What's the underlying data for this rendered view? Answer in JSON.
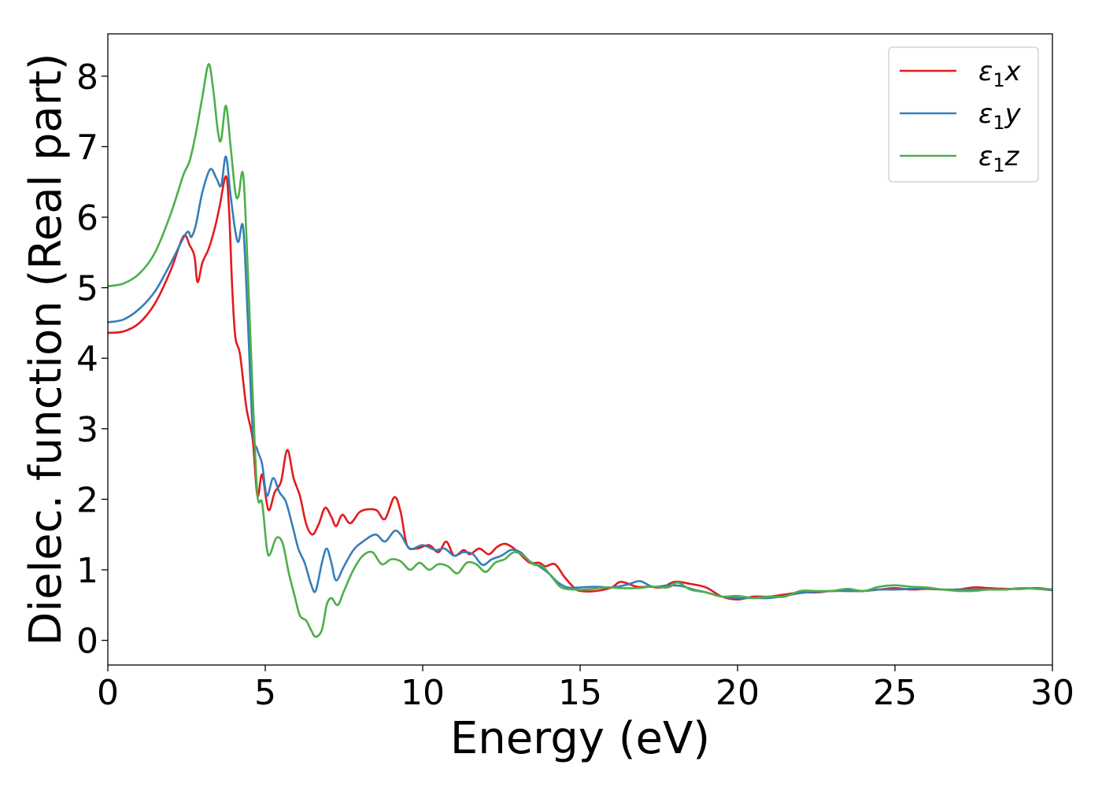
{
  "chart_data": {
    "type": "line",
    "xlabel": "Energy (eV)",
    "ylabel": "Dielec. function (Real part)",
    "xlim": [
      0,
      30
    ],
    "ylim": [
      -0.35,
      8.6
    ],
    "xticks": [
      0,
      5,
      10,
      15,
      20,
      25,
      30
    ],
    "yticks": [
      0,
      1,
      2,
      3,
      4,
      5,
      6,
      7,
      8
    ],
    "grid": false,
    "legend_position": "top-right",
    "series": [
      {
        "name": "ε1x",
        "name_base": "ε",
        "name_sub": "1",
        "name_suffix": "x",
        "color": "#e41a1c",
        "points": [
          [
            0,
            4.36
          ],
          [
            0.5,
            4.38
          ],
          [
            1.0,
            4.5
          ],
          [
            1.5,
            4.78
          ],
          [
            2.0,
            5.25
          ],
          [
            2.4,
            5.73
          ],
          [
            2.6,
            5.6
          ],
          [
            2.75,
            5.45
          ],
          [
            2.85,
            5.08
          ],
          [
            3.0,
            5.35
          ],
          [
            3.2,
            5.55
          ],
          [
            3.4,
            5.85
          ],
          [
            3.55,
            6.15
          ],
          [
            3.75,
            6.58
          ],
          [
            3.85,
            6.1
          ],
          [
            3.95,
            5.0
          ],
          [
            4.05,
            4.3
          ],
          [
            4.2,
            4.05
          ],
          [
            4.4,
            3.3
          ],
          [
            4.6,
            2.85
          ],
          [
            4.75,
            2.05
          ],
          [
            4.9,
            2.35
          ],
          [
            5.1,
            1.85
          ],
          [
            5.3,
            2.1
          ],
          [
            5.5,
            2.25
          ],
          [
            5.7,
            2.7
          ],
          [
            5.9,
            2.3
          ],
          [
            6.1,
            2.05
          ],
          [
            6.3,
            1.65
          ],
          [
            6.5,
            1.5
          ],
          [
            6.7,
            1.65
          ],
          [
            6.9,
            1.88
          ],
          [
            7.1,
            1.75
          ],
          [
            7.25,
            1.62
          ],
          [
            7.45,
            1.78
          ],
          [
            7.7,
            1.66
          ],
          [
            8.0,
            1.82
          ],
          [
            8.3,
            1.86
          ],
          [
            8.55,
            1.84
          ],
          [
            8.8,
            1.72
          ],
          [
            9.1,
            2.03
          ],
          [
            9.3,
            1.82
          ],
          [
            9.5,
            1.35
          ],
          [
            9.8,
            1.3
          ],
          [
            10.2,
            1.35
          ],
          [
            10.5,
            1.25
          ],
          [
            10.75,
            1.4
          ],
          [
            11.0,
            1.2
          ],
          [
            11.3,
            1.28
          ],
          [
            11.5,
            1.22
          ],
          [
            11.8,
            1.3
          ],
          [
            12.1,
            1.22
          ],
          [
            12.35,
            1.32
          ],
          [
            12.6,
            1.37
          ],
          [
            12.85,
            1.32
          ],
          [
            13.1,
            1.22
          ],
          [
            13.4,
            1.1
          ],
          [
            13.7,
            1.1
          ],
          [
            13.9,
            1.05
          ],
          [
            14.2,
            1.08
          ],
          [
            14.5,
            0.9
          ],
          [
            14.8,
            0.75
          ],
          [
            15.0,
            0.7
          ],
          [
            15.5,
            0.7
          ],
          [
            16.0,
            0.75
          ],
          [
            16.3,
            0.83
          ],
          [
            16.8,
            0.76
          ],
          [
            17.2,
            0.76
          ],
          [
            17.6,
            0.75
          ],
          [
            18.0,
            0.83
          ],
          [
            18.5,
            0.8
          ],
          [
            19.0,
            0.75
          ],
          [
            19.5,
            0.62
          ],
          [
            20.0,
            0.58
          ],
          [
            20.5,
            0.62
          ],
          [
            21.0,
            0.62
          ],
          [
            21.5,
            0.65
          ],
          [
            22.0,
            0.68
          ],
          [
            22.5,
            0.68
          ],
          [
            23.0,
            0.7
          ],
          [
            23.5,
            0.7
          ],
          [
            24.0,
            0.7
          ],
          [
            24.5,
            0.72
          ],
          [
            25.0,
            0.74
          ],
          [
            25.5,
            0.72
          ],
          [
            26.0,
            0.73
          ],
          [
            26.5,
            0.72
          ],
          [
            27.0,
            0.72
          ],
          [
            27.5,
            0.75
          ],
          [
            28.0,
            0.74
          ],
          [
            28.5,
            0.73
          ],
          [
            29.0,
            0.73
          ],
          [
            29.5,
            0.74
          ],
          [
            30.0,
            0.72
          ]
        ]
      },
      {
        "name": "ε1y",
        "name_base": "ε",
        "name_sub": "1",
        "name_suffix": "y",
        "color": "#377eb8",
        "points": [
          [
            0,
            4.51
          ],
          [
            0.5,
            4.55
          ],
          [
            1.0,
            4.7
          ],
          [
            1.5,
            4.95
          ],
          [
            2.0,
            5.35
          ],
          [
            2.5,
            5.78
          ],
          [
            2.65,
            5.72
          ],
          [
            2.8,
            5.9
          ],
          [
            3.0,
            6.35
          ],
          [
            3.25,
            6.68
          ],
          [
            3.45,
            6.55
          ],
          [
            3.6,
            6.45
          ],
          [
            3.75,
            6.86
          ],
          [
            3.9,
            6.3
          ],
          [
            4.05,
            5.8
          ],
          [
            4.15,
            5.65
          ],
          [
            4.3,
            5.85
          ],
          [
            4.45,
            4.5
          ],
          [
            4.6,
            3.0
          ],
          [
            4.75,
            2.7
          ],
          [
            4.9,
            2.5
          ],
          [
            5.05,
            2.05
          ],
          [
            5.25,
            2.3
          ],
          [
            5.45,
            2.1
          ],
          [
            5.65,
            1.97
          ],
          [
            5.85,
            1.65
          ],
          [
            6.05,
            1.3
          ],
          [
            6.25,
            1.1
          ],
          [
            6.45,
            0.8
          ],
          [
            6.6,
            0.7
          ],
          [
            6.8,
            1.1
          ],
          [
            6.95,
            1.3
          ],
          [
            7.1,
            1.1
          ],
          [
            7.25,
            0.85
          ],
          [
            7.5,
            1.05
          ],
          [
            7.8,
            1.28
          ],
          [
            8.1,
            1.4
          ],
          [
            8.5,
            1.5
          ],
          [
            8.8,
            1.4
          ],
          [
            9.1,
            1.55
          ],
          [
            9.3,
            1.5
          ],
          [
            9.6,
            1.3
          ],
          [
            10.0,
            1.35
          ],
          [
            10.4,
            1.28
          ],
          [
            10.7,
            1.3
          ],
          [
            11.0,
            1.2
          ],
          [
            11.3,
            1.25
          ],
          [
            11.6,
            1.22
          ],
          [
            11.9,
            1.07
          ],
          [
            12.2,
            1.15
          ],
          [
            12.5,
            1.2
          ],
          [
            12.8,
            1.28
          ],
          [
            13.1,
            1.25
          ],
          [
            13.4,
            1.12
          ],
          [
            13.7,
            1.05
          ],
          [
            14.0,
            0.95
          ],
          [
            14.3,
            0.82
          ],
          [
            14.6,
            0.75
          ],
          [
            15.0,
            0.75
          ],
          [
            15.5,
            0.76
          ],
          [
            16.0,
            0.75
          ],
          [
            16.5,
            0.79
          ],
          [
            16.9,
            0.84
          ],
          [
            17.3,
            0.76
          ],
          [
            17.8,
            0.78
          ],
          [
            18.2,
            0.77
          ],
          [
            18.6,
            0.72
          ],
          [
            19.0,
            0.68
          ],
          [
            19.5,
            0.62
          ],
          [
            20.0,
            0.6
          ],
          [
            20.5,
            0.6
          ],
          [
            21.0,
            0.6
          ],
          [
            21.5,
            0.63
          ],
          [
            22.0,
            0.67
          ],
          [
            22.5,
            0.69
          ],
          [
            23.0,
            0.7
          ],
          [
            23.5,
            0.7
          ],
          [
            24.0,
            0.7
          ],
          [
            24.5,
            0.72
          ],
          [
            25.0,
            0.72
          ],
          [
            25.5,
            0.73
          ],
          [
            26.0,
            0.74
          ],
          [
            26.5,
            0.72
          ],
          [
            27.0,
            0.72
          ],
          [
            27.5,
            0.72
          ],
          [
            28.0,
            0.72
          ],
          [
            28.5,
            0.72
          ],
          [
            29.0,
            0.74
          ],
          [
            29.5,
            0.73
          ],
          [
            30.0,
            0.71
          ]
        ]
      },
      {
        "name": "ε1z",
        "name_base": "ε",
        "name_sub": "1",
        "name_suffix": "z",
        "color": "#4daf4a",
        "points": [
          [
            0,
            5.02
          ],
          [
            0.5,
            5.06
          ],
          [
            1.0,
            5.2
          ],
          [
            1.5,
            5.5
          ],
          [
            2.0,
            6.05
          ],
          [
            2.4,
            6.6
          ],
          [
            2.6,
            6.8
          ],
          [
            2.8,
            7.2
          ],
          [
            3.0,
            7.7
          ],
          [
            3.2,
            8.17
          ],
          [
            3.35,
            7.8
          ],
          [
            3.5,
            7.2
          ],
          [
            3.6,
            7.1
          ],
          [
            3.75,
            7.58
          ],
          [
            3.9,
            7.0
          ],
          [
            4.05,
            6.35
          ],
          [
            4.15,
            6.3
          ],
          [
            4.3,
            6.6
          ],
          [
            4.45,
            5.2
          ],
          [
            4.6,
            3.5
          ],
          [
            4.75,
            2.07
          ],
          [
            4.9,
            1.95
          ],
          [
            5.05,
            1.3
          ],
          [
            5.15,
            1.22
          ],
          [
            5.35,
            1.45
          ],
          [
            5.55,
            1.38
          ],
          [
            5.75,
            0.95
          ],
          [
            5.95,
            0.6
          ],
          [
            6.1,
            0.35
          ],
          [
            6.3,
            0.28
          ],
          [
            6.45,
            0.15
          ],
          [
            6.6,
            0.05
          ],
          [
            6.8,
            0.15
          ],
          [
            6.95,
            0.5
          ],
          [
            7.1,
            0.6
          ],
          [
            7.3,
            0.5
          ],
          [
            7.5,
            0.7
          ],
          [
            7.8,
            1.0
          ],
          [
            8.1,
            1.2
          ],
          [
            8.4,
            1.25
          ],
          [
            8.7,
            1.08
          ],
          [
            9.0,
            1.15
          ],
          [
            9.3,
            1.12
          ],
          [
            9.6,
            1.0
          ],
          [
            9.9,
            1.1
          ],
          [
            10.2,
            1.0
          ],
          [
            10.5,
            1.08
          ],
          [
            10.8,
            1.05
          ],
          [
            11.1,
            0.95
          ],
          [
            11.4,
            1.1
          ],
          [
            11.7,
            1.08
          ],
          [
            12.0,
            0.97
          ],
          [
            12.3,
            1.1
          ],
          [
            12.6,
            1.15
          ],
          [
            12.9,
            1.25
          ],
          [
            13.2,
            1.2
          ],
          [
            13.5,
            1.08
          ],
          [
            13.8,
            1.05
          ],
          [
            14.1,
            0.9
          ],
          [
            14.4,
            0.75
          ],
          [
            14.8,
            0.72
          ],
          [
            15.2,
            0.72
          ],
          [
            15.8,
            0.75
          ],
          [
            16.3,
            0.74
          ],
          [
            16.8,
            0.74
          ],
          [
            17.3,
            0.76
          ],
          [
            17.8,
            0.75
          ],
          [
            18.1,
            0.82
          ],
          [
            18.5,
            0.72
          ],
          [
            19.0,
            0.68
          ],
          [
            19.5,
            0.62
          ],
          [
            20.0,
            0.63
          ],
          [
            20.5,
            0.6
          ],
          [
            21.0,
            0.62
          ],
          [
            21.5,
            0.62
          ],
          [
            22.0,
            0.7
          ],
          [
            22.5,
            0.7
          ],
          [
            23.0,
            0.7
          ],
          [
            23.5,
            0.73
          ],
          [
            24.0,
            0.7
          ],
          [
            24.5,
            0.76
          ],
          [
            25.0,
            0.78
          ],
          [
            25.5,
            0.76
          ],
          [
            26.0,
            0.75
          ],
          [
            26.5,
            0.72
          ],
          [
            27.0,
            0.7
          ],
          [
            27.5,
            0.7
          ],
          [
            28.0,
            0.72
          ],
          [
            28.5,
            0.72
          ],
          [
            29.0,
            0.74
          ],
          [
            29.5,
            0.73
          ],
          [
            30.0,
            0.72
          ]
        ]
      }
    ]
  }
}
